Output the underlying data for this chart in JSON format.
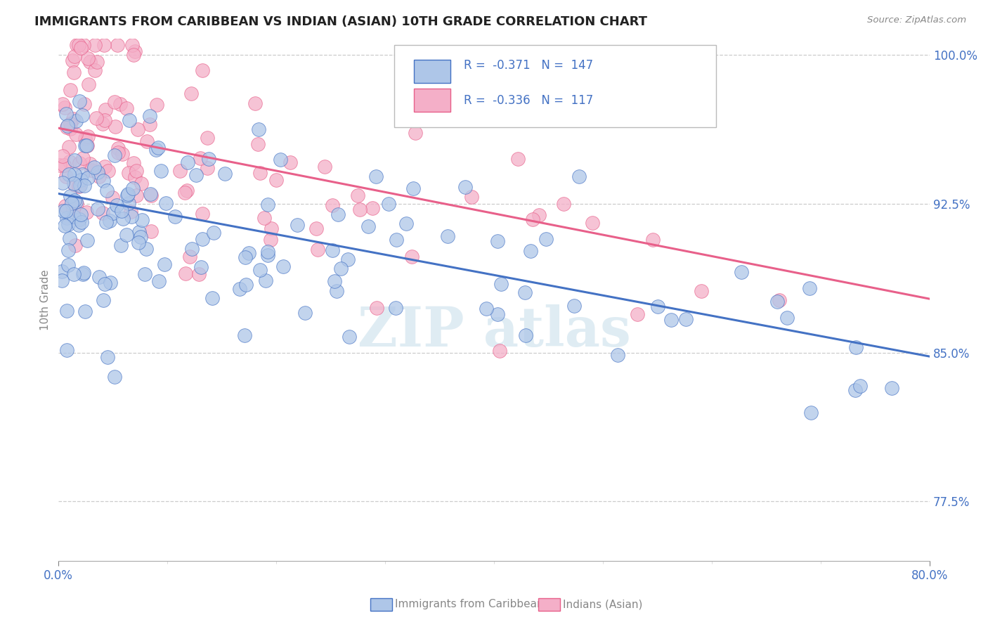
{
  "title": "IMMIGRANTS FROM CARIBBEAN VS INDIAN (ASIAN) 10TH GRADE CORRELATION CHART",
  "source_text": "Source: ZipAtlas.com",
  "ylabel": "10th Grade",
  "xmin": 0.0,
  "xmax": 0.8,
  "ymin": 0.745,
  "ymax": 1.008,
  "yticks": [
    0.775,
    0.85,
    0.925,
    1.0
  ],
  "ytick_labels": [
    "77.5%",
    "85.0%",
    "92.5%",
    "100.0%"
  ],
  "xtick_labels": [
    "0.0%",
    "80.0%"
  ],
  "blue_color": "#aec6e8",
  "pink_color": "#f4afc8",
  "blue_line_color": "#4472c4",
  "pink_line_color": "#e8608a",
  "legend_blue_R": "-0.371",
  "legend_blue_N": "147",
  "legend_pink_R": "-0.336",
  "legend_pink_N": "117",
  "legend_label_blue": "Immigrants from Caribbean",
  "legend_label_pink": "Indians (Asian)",
  "blue_trend_x": [
    0.0,
    0.8
  ],
  "blue_trend_y": [
    0.93,
    0.848
  ],
  "pink_trend_x": [
    0.0,
    0.8
  ],
  "pink_trend_y": [
    0.963,
    0.877
  ]
}
